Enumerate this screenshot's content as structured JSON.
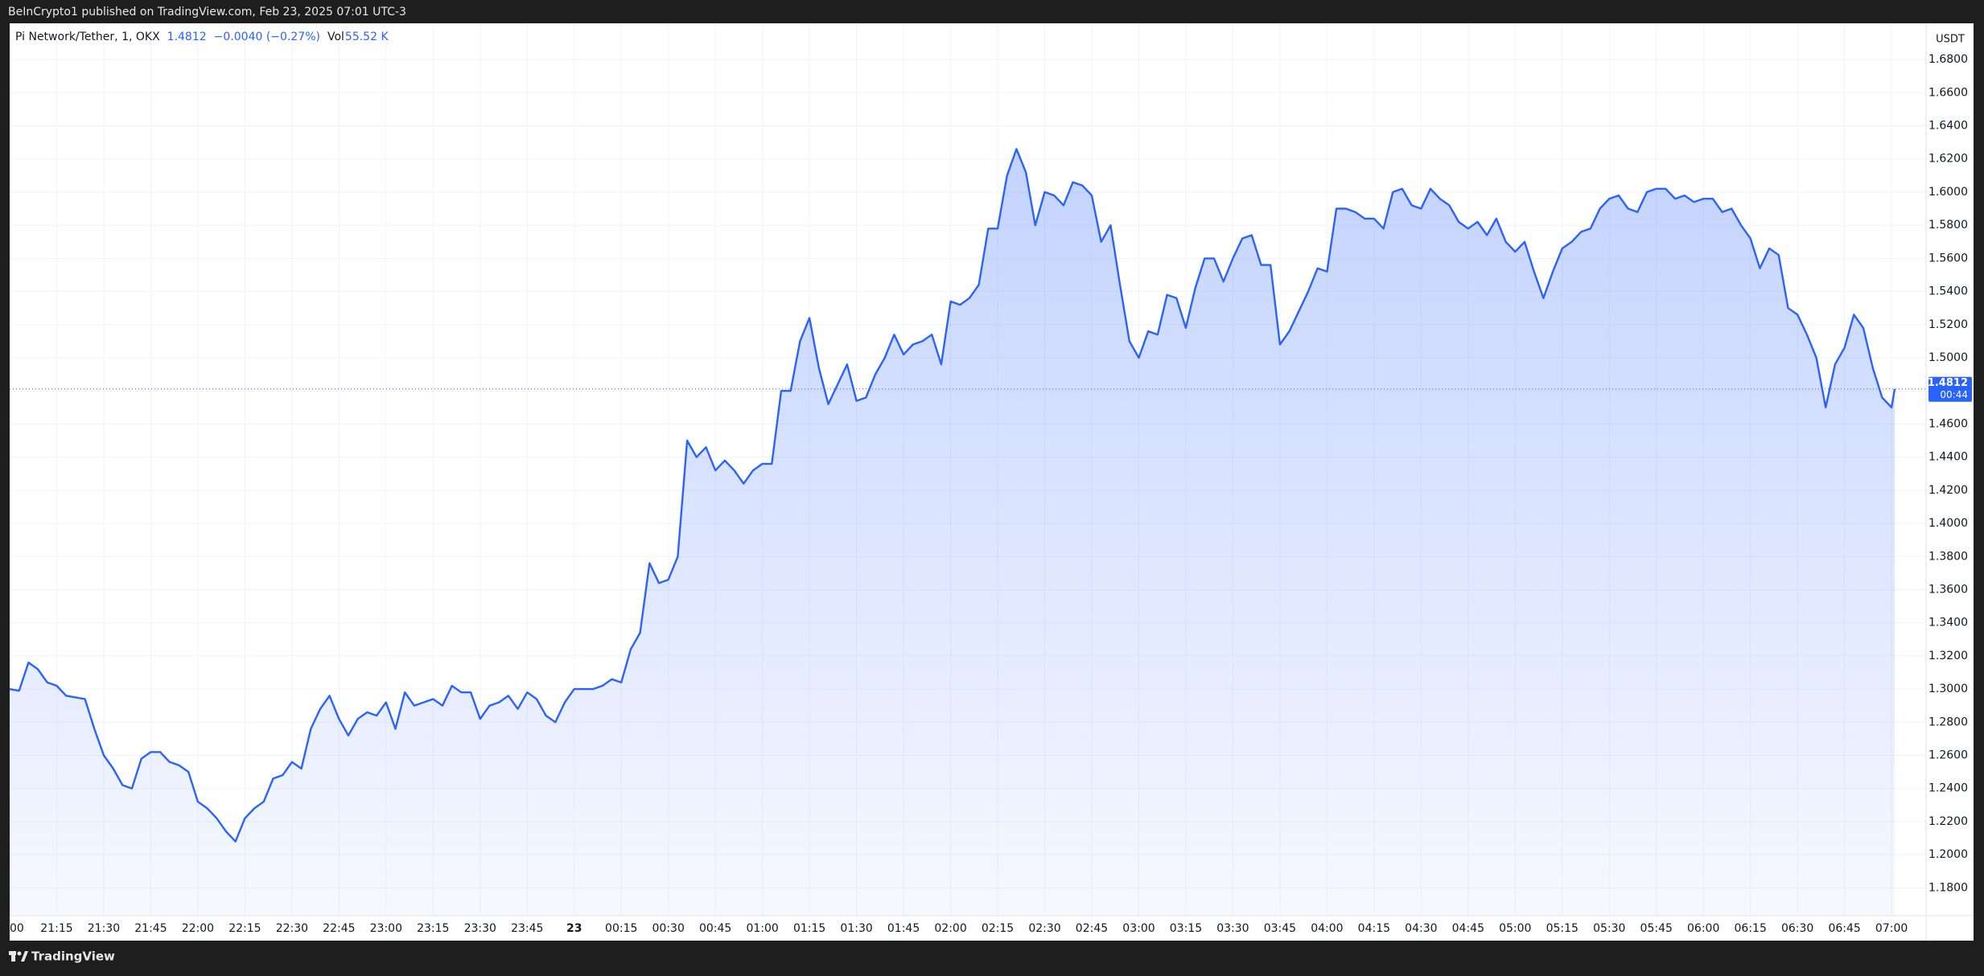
{
  "published": "BeInCrypto1 published on TradingView.com, Feb 23, 2025 07:01 UTC-3",
  "brand": "TradingView",
  "chart_data": {
    "type": "area",
    "title": "Pi Network/Tether, 1, OKX",
    "legend_price": "1.4812",
    "legend_change": "−0.0040 (−0.27%)",
    "volume_label": "Vol",
    "volume": "55.52 K",
    "y_axis_label": "USDT",
    "color": "#2962ff",
    "grid": true,
    "last_price": {
      "value": 1.4812,
      "label": "1.4812",
      "countdown": "00:44"
    },
    "xlim": [
      "21:00",
      "07:11"
    ],
    "xticks": [
      {
        "value": "21:00",
        "label": "00"
      },
      "21:15",
      "21:30",
      "21:45",
      "22:00",
      "22:15",
      "22:30",
      "22:45",
      "23:00",
      "23:15",
      "23:30",
      "23:45",
      {
        "value": "00:00",
        "label": "23"
      },
      "00:15",
      "00:30",
      "00:45",
      "01:00",
      "01:15",
      "01:30",
      "01:45",
      "02:00",
      "02:15",
      "02:30",
      "02:45",
      "03:00",
      "03:15",
      "03:30",
      "03:45",
      "04:00",
      "04:15",
      "04:30",
      "04:45",
      "05:00",
      "05:15",
      "05:30",
      "05:45",
      "06:00",
      "06:15",
      "06:30",
      "06:45",
      "07:00"
    ],
    "ylim": [
      1.1632,
      1.7014
    ],
    "yticks": [
      {
        "value": 1.18,
        "label": "1.1800"
      },
      {
        "value": 1.2,
        "label": "1.2000"
      },
      {
        "value": 1.22,
        "label": "1.2200"
      },
      {
        "value": 1.24,
        "label": "1.2400"
      },
      {
        "value": 1.26,
        "label": "1.2600"
      },
      {
        "value": 1.28,
        "label": "1.2800"
      },
      {
        "value": 1.3,
        "label": "1.3000"
      },
      {
        "value": 1.32,
        "label": "1.3200"
      },
      {
        "value": 1.34,
        "label": "1.3400"
      },
      {
        "value": 1.36,
        "label": "1.3600"
      },
      {
        "value": 1.38,
        "label": "1.3800"
      },
      {
        "value": 1.4,
        "label": "1.4000"
      },
      {
        "value": 1.42,
        "label": "1.4200"
      },
      {
        "value": 1.44,
        "label": "1.4400"
      },
      {
        "value": 1.46,
        "label": "1.4600"
      },
      {
        "value": 1.48,
        "label": "1.4800"
      },
      {
        "value": 1.5,
        "label": "1.5000"
      },
      {
        "value": 1.52,
        "label": "1.5200"
      },
      {
        "value": 1.54,
        "label": "1.5400"
      },
      {
        "value": 1.56,
        "label": "1.5600"
      },
      {
        "value": 1.58,
        "label": "1.5800"
      },
      {
        "value": 1.6,
        "label": "1.6000"
      },
      {
        "value": 1.62,
        "label": "1.6200"
      },
      {
        "value": 1.64,
        "label": "1.6400"
      },
      {
        "value": 1.66,
        "label": "1.6600"
      },
      {
        "value": 1.68,
        "label": "1.6800"
      }
    ],
    "x": [
      "21:00",
      "21:03",
      "21:06",
      "21:09",
      "21:12",
      "21:15",
      "21:18",
      "21:21",
      "21:24",
      "21:27",
      "21:30",
      "21:33",
      "21:36",
      "21:39",
      "21:42",
      "21:45",
      "21:48",
      "21:51",
      "21:54",
      "21:57",
      "22:00",
      "22:03",
      "22:06",
      "22:09",
      "22:12",
      "22:15",
      "22:18",
      "22:21",
      "22:24",
      "22:27",
      "22:30",
      "22:33",
      "22:36",
      "22:39",
      "22:42",
      "22:45",
      "22:48",
      "22:51",
      "22:54",
      "22:57",
      "23:00",
      "23:03",
      "23:06",
      "23:09",
      "23:12",
      "23:15",
      "23:18",
      "23:21",
      "23:24",
      "23:27",
      "23:30",
      "23:33",
      "23:36",
      "23:39",
      "23:42",
      "23:45",
      "23:48",
      "23:51",
      "23:54",
      "23:57",
      "00:00",
      "00:03",
      "00:06",
      "00:09",
      "00:12",
      "00:15",
      "00:18",
      "00:21",
      "00:24",
      "00:27",
      "00:30",
      "00:33",
      "00:36",
      "00:39",
      "00:42",
      "00:45",
      "00:48",
      "00:51",
      "00:54",
      "00:57",
      "01:00",
      "01:03",
      "01:06",
      "01:09",
      "01:12",
      "01:15",
      "01:18",
      "01:21",
      "01:24",
      "01:27",
      "01:30",
      "01:33",
      "01:36",
      "01:39",
      "01:42",
      "01:45",
      "01:48",
      "01:51",
      "01:54",
      "01:57",
      "02:00",
      "02:03",
      "02:06",
      "02:09",
      "02:12",
      "02:15",
      "02:18",
      "02:21",
      "02:24",
      "02:27",
      "02:30",
      "02:33",
      "02:36",
      "02:39",
      "02:42",
      "02:45",
      "02:48",
      "02:51",
      "02:54",
      "02:57",
      "03:00",
      "03:03",
      "03:06",
      "03:09",
      "03:12",
      "03:15",
      "03:18",
      "03:21",
      "03:24",
      "03:27",
      "03:30",
      "03:33",
      "03:36",
      "03:39",
      "03:42",
      "03:45",
      "03:48",
      "03:51",
      "03:54",
      "03:57",
      "04:00",
      "04:03",
      "04:06",
      "04:09",
      "04:12",
      "04:15",
      "04:18",
      "04:21",
      "04:24",
      "04:27",
      "04:30",
      "04:33",
      "04:36",
      "04:39",
      "04:42",
      "04:45",
      "04:48",
      "04:51",
      "04:54",
      "04:57",
      "05:00",
      "05:03",
      "05:06",
      "05:09",
      "05:12",
      "05:15",
      "05:18",
      "05:21",
      "05:24",
      "05:27",
      "05:30",
      "05:33",
      "05:36",
      "05:39",
      "05:42",
      "05:45",
      "05:48",
      "05:51",
      "05:54",
      "05:57",
      "06:00",
      "06:03",
      "06:06",
      "06:09",
      "06:12",
      "06:15",
      "06:18",
      "06:21",
      "06:24",
      "06:27",
      "06:30",
      "06:33",
      "06:36",
      "06:39",
      "06:42",
      "06:45",
      "06:48",
      "06:51",
      "06:54",
      "06:57",
      "07:00",
      "07:01"
    ],
    "values": [
      1.3,
      1.299,
      1.316,
      1.312,
      1.304,
      1.302,
      1.296,
      1.295,
      1.294,
      1.276,
      1.26,
      1.252,
      1.242,
      1.24,
      1.258,
      1.262,
      1.262,
      1.256,
      1.254,
      1.25,
      1.232,
      1.228,
      1.222,
      1.214,
      1.208,
      1.222,
      1.228,
      1.232,
      1.246,
      1.248,
      1.256,
      1.252,
      1.276,
      1.288,
      1.296,
      1.282,
      1.272,
      1.282,
      1.286,
      1.284,
      1.292,
      1.276,
      1.298,
      1.29,
      1.292,
      1.294,
      1.29,
      1.302,
      1.298,
      1.298,
      1.282,
      1.29,
      1.292,
      1.296,
      1.288,
      1.298,
      1.294,
      1.284,
      1.28,
      1.292,
      1.3,
      1.3,
      1.3,
      1.302,
      1.306,
      1.304,
      1.324,
      1.334,
      1.376,
      1.364,
      1.366,
      1.38,
      1.45,
      1.44,
      1.446,
      1.432,
      1.438,
      1.432,
      1.424,
      1.432,
      1.436,
      1.436,
      1.48,
      1.48,
      1.51,
      1.524,
      1.494,
      1.472,
      1.484,
      1.496,
      1.474,
      1.476,
      1.49,
      1.5,
      1.514,
      1.502,
      1.508,
      1.51,
      1.514,
      1.496,
      1.534,
      1.532,
      1.536,
      1.544,
      1.578,
      1.578,
      1.61,
      1.626,
      1.612,
      1.58,
      1.6,
      1.598,
      1.592,
      1.606,
      1.604,
      1.598,
      1.57,
      1.58,
      1.544,
      1.51,
      1.5,
      1.516,
      1.514,
      1.538,
      1.536,
      1.518,
      1.542,
      1.56,
      1.56,
      1.546,
      1.56,
      1.572,
      1.574,
      1.556,
      1.556,
      1.508,
      1.516,
      1.528,
      1.54,
      1.554,
      1.552,
      1.59,
      1.59,
      1.588,
      1.584,
      1.584,
      1.578,
      1.6,
      1.602,
      1.592,
      1.59,
      1.602,
      1.596,
      1.592,
      1.582,
      1.578,
      1.582,
      1.574,
      1.584,
      1.57,
      1.564,
      1.57,
      1.552,
      1.536,
      1.552,
      1.566,
      1.57,
      1.576,
      1.578,
      1.59,
      1.596,
      1.598,
      1.59,
      1.588,
      1.6,
      1.602,
      1.602,
      1.596,
      1.598,
      1.594,
      1.596,
      1.596,
      1.588,
      1.59,
      1.58,
      1.572,
      1.554,
      1.566,
      1.562,
      1.53,
      1.526,
      1.514,
      1.5,
      1.47,
      1.496,
      1.506,
      1.526,
      1.518,
      1.494,
      1.476,
      1.47,
      1.4812
    ]
  }
}
